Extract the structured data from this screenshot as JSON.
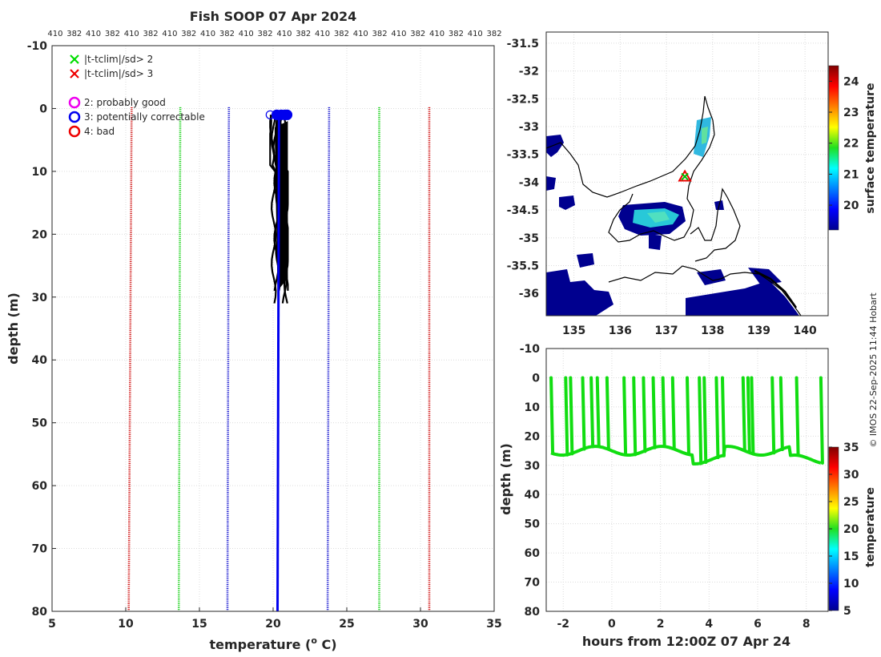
{
  "chart_data": [
    {
      "type": "line",
      "title": "Fish SOOP 07 Apr 2024",
      "xlabel": "temperature (",
      "xlabel_sup": "o",
      "xlabel_end": " C)",
      "ylabel": "depth (m)",
      "xlim": [
        5,
        35
      ],
      "ylim": [
        -10,
        80
      ],
      "xticks": [
        5,
        10,
        15,
        20,
        25,
        30,
        35
      ],
      "yticks": [
        -10,
        0,
        10,
        20,
        30,
        40,
        50,
        60,
        70,
        80
      ],
      "top_labels": [
        "410",
        "382",
        "410",
        "382",
        "410",
        "382",
        "410",
        "382",
        "410",
        "382",
        "410",
        "382",
        "410",
        "382",
        "410",
        "382",
        "410",
        "382",
        "410",
        "382",
        "410",
        "382",
        "410",
        "382"
      ],
      "legend": [
        {
          "marker": "x",
          "color": "#00dd00",
          "label": "|t-tclim|/sd> 2"
        },
        {
          "marker": "x",
          "color": "#ee0000",
          "label": "|t-tclim|/sd> 3"
        },
        {
          "marker": "o",
          "color": "#ee00ee",
          "label": "2: probably good"
        },
        {
          "marker": "o",
          "color": "#0000ee",
          "label": "3: potentially correctable"
        },
        {
          "marker": "o",
          "color": "#ee0000",
          "label": "4: bad"
        }
      ],
      "climatology_lines": [
        {
          "name": "-3sd",
          "color": "#cc0000",
          "top_t": 10.4,
          "bottom_t": 10.2
        },
        {
          "name": "-2sd",
          "color": "#00cc00",
          "top_t": 13.7,
          "bottom_t": 13.6
        },
        {
          "name": "-1sd",
          "color": "#0000cc",
          "top_t": 17.0,
          "bottom_t": 16.9
        },
        {
          "name": "+1sd",
          "color": "#0000cc",
          "top_t": 23.8,
          "bottom_t": 23.7
        },
        {
          "name": "+2sd",
          "color": "#00cc00",
          "top_t": 27.2,
          "bottom_t": 27.2
        },
        {
          "name": "+3sd",
          "color": "#cc0000",
          "top_t": 30.6,
          "bottom_t": 30.6
        }
      ],
      "mean_profile": {
        "color": "#0000ee",
        "t_top": 20.4,
        "t_bottom": 20.3,
        "depth_top": 1,
        "depth_bottom": 80
      },
      "observed_profiles": {
        "color": "#000000",
        "t_min": 19.8,
        "t_max": 21.0,
        "depth_max": 31
      }
    },
    {
      "type": "heatmap",
      "xlim": [
        134.4,
        140.5
      ],
      "ylim": [
        -36.4,
        -31.3
      ],
      "xticks": [
        135,
        136,
        137,
        138,
        139,
        140
      ],
      "yticks": [
        -31.5,
        -32,
        -32.5,
        -33,
        -33.5,
        -34,
        -34.5,
        -35,
        -35.5,
        -36
      ],
      "colorbar_label": "surface temperature",
      "colorbar_range": [
        19.2,
        24.5
      ],
      "colorbar_ticks": [
        20,
        21,
        22,
        23,
        24
      ],
      "marker_position": {
        "lon": 137.4,
        "lat": -33.9
      }
    },
    {
      "type": "scatter",
      "xlabel": "hours from 12:00Z 07 Apr 24",
      "ylabel": "depth (m)",
      "xlim": [
        -2.7,
        8.9
      ],
      "ylim": [
        -10,
        80
      ],
      "xticks": [
        -2,
        0,
        2,
        4,
        6,
        8
      ],
      "yticks": [
        -10,
        0,
        10,
        20,
        30,
        40,
        50,
        60,
        70,
        80
      ],
      "colorbar_label": "temperature",
      "colorbar_range": [
        5,
        35
      ],
      "colorbar_ticks": [
        5,
        10,
        15,
        20,
        25,
        30,
        35
      ],
      "point_color": "#11dd11",
      "profile_times": [
        -2.5,
        -1.9,
        -1.7,
        -1.2,
        -0.85,
        -0.6,
        -0.2,
        0.5,
        0.9,
        1.3,
        1.7,
        2.1,
        2.5,
        3.1,
        3.6,
        3.8,
        4.3,
        4.55,
        5.4,
        5.6,
        5.75,
        6.6,
        6.95,
        7.6,
        8.6
      ],
      "profile_bottom_depth": 25
    }
  ],
  "watermark": "© IMOS 22-Sep-2025 11:44 Hobart"
}
